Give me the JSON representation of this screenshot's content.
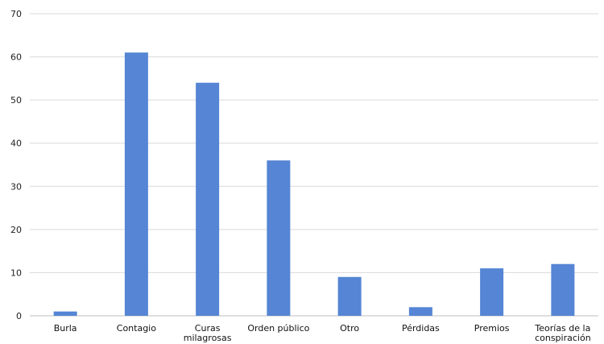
{
  "chart_data": {
    "type": "bar",
    "title": "",
    "xlabel": "",
    "ylabel": "",
    "categories": [
      "Burla",
      "Contagio",
      "Curas milagrosas",
      "Orden público",
      "Otro",
      "Pérdidas",
      "Premios",
      "Teorías de la conspiración"
    ],
    "category_lines": [
      [
        "Burla"
      ],
      [
        "Contagio"
      ],
      [
        "Curas",
        "milagrosas"
      ],
      [
        "Orden público"
      ],
      [
        "Otro"
      ],
      [
        "Pérdidas"
      ],
      [
        "Premios"
      ],
      [
        "Teorías de la",
        "conspiración"
      ]
    ],
    "values": [
      1,
      61,
      54,
      36,
      9,
      2,
      11,
      12
    ],
    "ylim": [
      0,
      70
    ],
    "yticks": [
      "0",
      "10",
      "20",
      "30",
      "40",
      "50",
      "60",
      "70"
    ],
    "grid": true,
    "colors": {
      "bar": "#5585d4",
      "grid": "#d9d9d9",
      "axis": "#bfbfbf"
    }
  }
}
